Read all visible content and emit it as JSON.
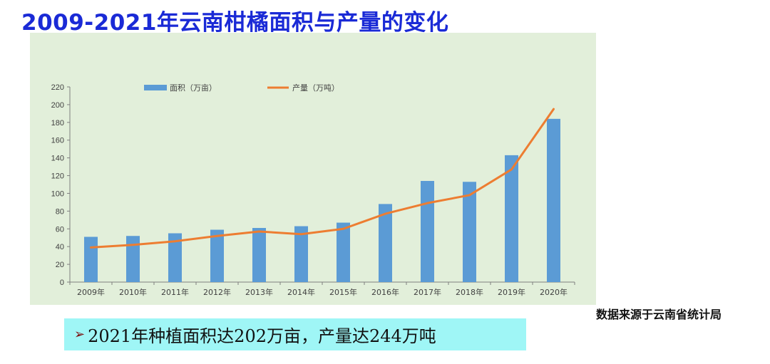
{
  "title": "2009-2021年云南柑橘面积与产量的变化",
  "source": "数据来源于云南省统计局",
  "summary": {
    "bullet": "➢",
    "text": "2021年种植面积达202万亩，产量达244万吨"
  },
  "colors": {
    "title": "#1a2ad6",
    "bars": "#5b9bd5",
    "line": "#ed7d31",
    "chart_bg": "#e2efda",
    "summary_bg": "#9ff6f6"
  },
  "chart_data": {
    "type": "bar",
    "title": "",
    "xlabel": "",
    "ylabel": "",
    "ylim": [
      0,
      220
    ],
    "ytick_step": 20,
    "yticks": [
      "0",
      "20",
      "40",
      "60",
      "80",
      "100",
      "120",
      "140",
      "160",
      "180",
      "200",
      "220"
    ],
    "legend_position": "top",
    "categories": [
      "2009年",
      "2010年",
      "2011年",
      "2012年",
      "2013年",
      "2014年",
      "2015年",
      "2016年",
      "2017年",
      "2018年",
      "2019年",
      "2020年"
    ],
    "series": [
      {
        "name": "面积（万亩）",
        "kind": "bar",
        "values": [
          51,
          52,
          55,
          59,
          61,
          63,
          67,
          88,
          114,
          113,
          143,
          184
        ]
      },
      {
        "name": "产量（万吨）",
        "kind": "line",
        "values": [
          39,
          42,
          46,
          52,
          57,
          54,
          60,
          77,
          89,
          98,
          127,
          195
        ]
      }
    ]
  }
}
